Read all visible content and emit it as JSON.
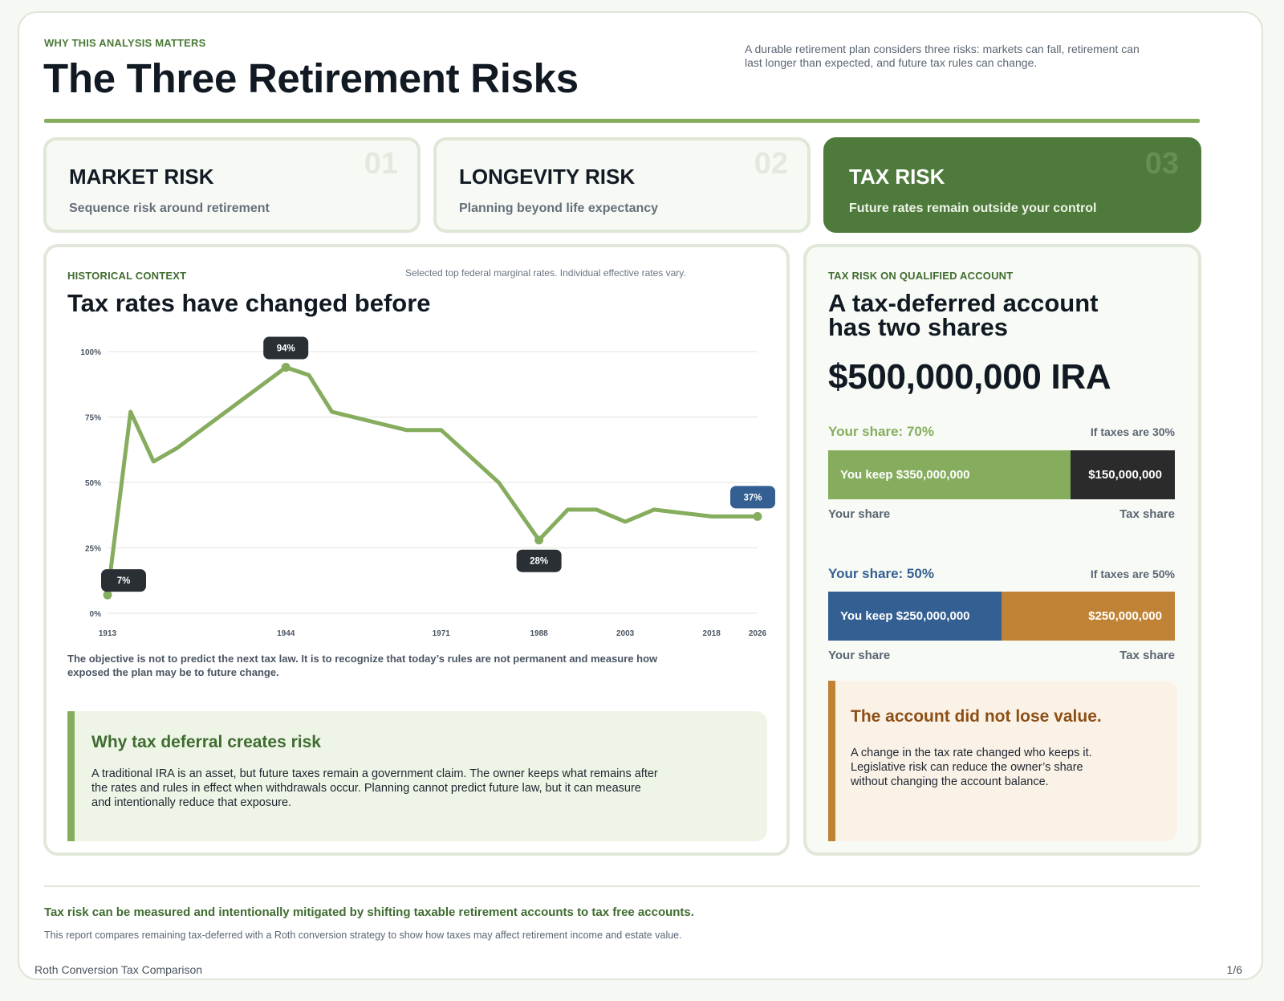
{
  "header": {
    "eyebrow": "WHY THIS ANALYSIS MATTERS",
    "title": "The Three Retirement Risks",
    "intro": "A durable retirement plan considers three risks: markets can fall, retirement can last longer than expected, and future tax rules can change."
  },
  "risks": [
    {
      "number": "01",
      "title": "MARKET RISK",
      "subtitle": "Sequence risk around retirement"
    },
    {
      "number": "02",
      "title": "LONGEVITY RISK",
      "subtitle": "Planning beyond life expectancy"
    },
    {
      "number": "03",
      "title": "TAX RISK",
      "subtitle": "Future rates remain outside your control"
    }
  ],
  "history": {
    "label": "HISTORICAL CONTEXT",
    "note": "Selected top federal marginal rates. Individual effective rates vary.",
    "title": "Tax rates have changed before",
    "caption": "The objective is not to predict the next tax law. It is to recognize that today’s rules are not permanent and measure how exposed the plan may be to future change."
  },
  "chart_data": {
    "type": "line",
    "title": "",
    "xlabel": "",
    "ylabel": "",
    "x": [
      1913,
      1917,
      1921,
      1925,
      1944,
      1948,
      1952,
      1965,
      1971,
      1981,
      1988,
      1993,
      1998,
      2003,
      2008,
      2018,
      2026
    ],
    "y": [
      7,
      77,
      58,
      63,
      94,
      91,
      77,
      70,
      70,
      50,
      28,
      39.6,
      39.6,
      35,
      39.6,
      37,
      37
    ],
    "x_ticks": [
      "1913",
      "1944",
      "1971",
      "1988",
      "2003",
      "2018",
      "2026"
    ],
    "y_ticks": [
      "0%",
      "25%",
      "50%",
      "75%",
      "100%"
    ],
    "ylim": [
      0,
      100
    ],
    "grid": true,
    "annotations": [
      {
        "x": 1913,
        "label": "7%",
        "style": "dark"
      },
      {
        "x": 1944,
        "label": "94%",
        "style": "dark"
      },
      {
        "x": 1988,
        "label": "28%",
        "style": "dark"
      },
      {
        "x": 2026,
        "label": "37%",
        "style": "blue"
      }
    ],
    "colors": {
      "line": "#86ad5e",
      "dark": "#2a2f34",
      "blue": "#345f92",
      "grid": "#e6e9e3",
      "tick": "#4a5562"
    }
  },
  "why": {
    "title": "Why tax deferral creates risk",
    "body": "A traditional IRA is an asset, but future taxes remain a government claim. The owner keeps what remains after the rates and rules in effect when withdrawals occur. Planning cannot predict future law, but it can measure and intentionally reduce that exposure."
  },
  "ira": {
    "label": "TAX RISK ON QUALIFIED ACCOUNT",
    "title_line1": "A tax-deferred account",
    "title_line2": "has two shares",
    "amount": "$500,000,000 IRA",
    "scenarios": [
      {
        "share_label": "Your share: 70%",
        "tax_label": "If taxes are 30%",
        "keep_text": "You keep $350,000,000",
        "tax_text": "$150,000,000",
        "keep_fraction": 0.7,
        "keep_color": "#86ad5e",
        "tax_color": "#2b2b2b",
        "label_color": "#86ad5e",
        "your_share": "Your share",
        "tax_share": "Tax share"
      },
      {
        "share_label": "Your share: 50%",
        "tax_label": "If taxes are 50%",
        "keep_text": "You keep $250,000,000",
        "tax_text": "$250,000,000",
        "keep_fraction": 0.5,
        "keep_color": "#345f92",
        "tax_color": "#c08335",
        "label_color": "#345f92",
        "your_share": "Your share",
        "tax_share": "Tax share"
      }
    ],
    "callout_title": "The account did not lose value.",
    "callout_body": "A change in the tax rate changed who keeps it. Legislative risk can reduce the owner’s share without changing the account balance."
  },
  "footer": {
    "lead": "Tax risk can be measured and intentionally mitigated by shifting taxable retirement accounts to tax free accounts.",
    "note": "This report compares remaining tax-deferred with a Roth conversion strategy to show how taxes may affect retirement income and estate value.",
    "doc_name": "Roth Conversion Tax Comparison",
    "page": "1/6"
  }
}
